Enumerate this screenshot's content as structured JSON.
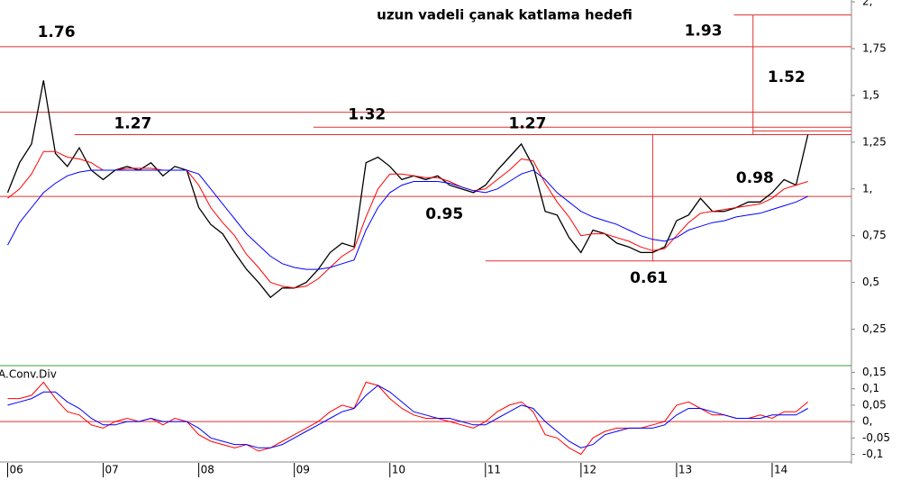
{
  "chart_data": [
    {
      "type": "line",
      "title": "uzun vadeli çanak katlama hedefi",
      "x": [
        6,
        6.125,
        6.25,
        6.375,
        6.5,
        6.625,
        6.75,
        6.875,
        7,
        7.125,
        7.25,
        7.375,
        7.5,
        7.625,
        7.75,
        7.875,
        8,
        8.125,
        8.25,
        8.375,
        8.5,
        8.625,
        8.75,
        8.875,
        9,
        9.125,
        9.25,
        9.375,
        9.5,
        9.625,
        9.75,
        9.875,
        10,
        10.125,
        10.25,
        10.375,
        10.5,
        10.625,
        10.75,
        10.875,
        11,
        11.125,
        11.25,
        11.375,
        11.5,
        11.625,
        11.75,
        11.875,
        12,
        12.125,
        12.25,
        12.375,
        12.5,
        12.625,
        12.75,
        12.875,
        13,
        13.125,
        13.25,
        13.375,
        13.5,
        13.625,
        13.75,
        13.875,
        14,
        14.125,
        14.25,
        14.375
      ],
      "series": [
        {
          "color": "#000000",
          "values": [
            0.98,
            1.14,
            1.24,
            1.58,
            1.19,
            1.12,
            1.22,
            1.1,
            1.05,
            1.1,
            1.12,
            1.1,
            1.14,
            1.07,
            1.12,
            1.1,
            0.9,
            0.81,
            0.76,
            0.66,
            0.57,
            0.5,
            0.42,
            0.47,
            0.47,
            0.5,
            0.57,
            0.66,
            0.71,
            0.69,
            1.14,
            1.17,
            1.12,
            1.05,
            1.07,
            1.05,
            1.07,
            1.02,
            1.0,
            0.98,
            1.02,
            1.1,
            1.17,
            1.24,
            1.12,
            0.88,
            0.86,
            0.74,
            0.66,
            0.78,
            0.76,
            0.71,
            0.69,
            0.66,
            0.66,
            0.69,
            0.83,
            0.86,
            0.95,
            0.88,
            0.88,
            0.9,
            0.93,
            0.93,
            0.98,
            1.05,
            1.02,
            1.29
          ]
        },
        {
          "color": "#ff0000",
          "values": [
            0.95,
            1.0,
            1.08,
            1.2,
            1.2,
            1.17,
            1.16,
            1.14,
            1.1,
            1.1,
            1.11,
            1.11,
            1.11,
            1.1,
            1.1,
            1.1,
            1.02,
            0.9,
            0.82,
            0.75,
            0.65,
            0.58,
            0.5,
            0.48,
            0.47,
            0.48,
            0.52,
            0.58,
            0.64,
            0.68,
            0.85,
            1.0,
            1.08,
            1.08,
            1.07,
            1.06,
            1.06,
            1.04,
            1.01,
            0.99,
            1.0,
            1.05,
            1.1,
            1.16,
            1.15,
            1.03,
            0.93,
            0.85,
            0.75,
            0.76,
            0.76,
            0.74,
            0.72,
            0.69,
            0.67,
            0.68,
            0.75,
            0.82,
            0.87,
            0.88,
            0.89,
            0.9,
            0.91,
            0.92,
            0.95,
            1.0,
            1.02,
            1.04
          ]
        },
        {
          "color": "#0000ff",
          "values": [
            0.7,
            0.82,
            0.9,
            0.98,
            1.03,
            1.07,
            1.09,
            1.1,
            1.1,
            1.1,
            1.1,
            1.1,
            1.1,
            1.1,
            1.1,
            1.1,
            1.08,
            1.0,
            0.92,
            0.84,
            0.76,
            0.7,
            0.64,
            0.6,
            0.58,
            0.57,
            0.57,
            0.58,
            0.6,
            0.62,
            0.78,
            0.9,
            0.98,
            1.02,
            1.04,
            1.04,
            1.04,
            1.03,
            1.01,
            0.99,
            0.98,
            1.0,
            1.04,
            1.08,
            1.1,
            1.05,
            0.98,
            0.93,
            0.88,
            0.85,
            0.83,
            0.81,
            0.78,
            0.75,
            0.73,
            0.72,
            0.74,
            0.78,
            0.8,
            0.82,
            0.83,
            0.85,
            0.86,
            0.87,
            0.89,
            0.91,
            0.93,
            0.96
          ]
        }
      ],
      "xlim": [
        5.92,
        14.83
      ],
      "ylim": [
        0.06,
        2.01
      ],
      "yticks": [
        {
          "value": 0.25,
          "label": "0,25"
        },
        {
          "value": 0.5,
          "label": "0,5"
        },
        {
          "value": 0.75,
          "label": "0,75"
        },
        {
          "value": 1,
          "label": "1,"
        },
        {
          "value": 1.25,
          "label": "1,25"
        },
        {
          "value": 1.5,
          "label": "1,5"
        },
        {
          "value": 1.75,
          "label": "1,75"
        },
        {
          "value": 2,
          "label": "2,"
        }
      ],
      "levels": [
        {
          "value": 1.93,
          "from": 13.6
        },
        {
          "value": 1.76,
          "from": 5.92
        },
        {
          "value": 1.41,
          "from": 5.92
        },
        {
          "value": 1.33,
          "from": 9.2
        },
        {
          "value": 1.31,
          "from": 13.8
        },
        {
          "value": 1.29,
          "from": 6.7
        },
        {
          "value": 0.96,
          "from": 5.92
        },
        {
          "value": 0.615,
          "from": 11.0
        }
      ],
      "verticals": [
        {
          "x": 12.75,
          "ylim": [
            0.615,
            1.29
          ]
        },
        {
          "x": 13.8,
          "ylim": [
            1.29,
            1.93
          ]
        }
      ],
      "annotations": [
        {
          "text": "1.76",
          "value": 1.76,
          "x": 6.51,
          "position": "above"
        },
        {
          "text": "1.27",
          "value": 1.27,
          "x": 7.31,
          "position": "above"
        },
        {
          "text": "1.32",
          "value": 1.32,
          "x": 9.76,
          "position": "above"
        },
        {
          "text": "1.27",
          "value": 1.27,
          "x": 11.44,
          "position": "above"
        },
        {
          "text": "0.95",
          "value": 0.95,
          "x": 10.57,
          "position": "below"
        },
        {
          "text": "0.61",
          "value": 0.61,
          "x": 12.71,
          "position": "below"
        },
        {
          "text": "0.98",
          "value": 0.98,
          "x": 13.82,
          "position": "above"
        },
        {
          "text": "1.52",
          "value": 1.52,
          "x": 14.15,
          "position": "above"
        },
        {
          "text": "1.93",
          "value": 1.93,
          "x": 13.28,
          "position": "below"
        }
      ]
    },
    {
      "type": "line",
      "title": "A.Conv.Div",
      "x": [
        6,
        6.125,
        6.25,
        6.375,
        6.5,
        6.625,
        6.75,
        6.875,
        7,
        7.125,
        7.25,
        7.375,
        7.5,
        7.625,
        7.75,
        7.875,
        8,
        8.125,
        8.25,
        8.375,
        8.5,
        8.625,
        8.75,
        8.875,
        9,
        9.125,
        9.25,
        9.375,
        9.5,
        9.625,
        9.75,
        9.875,
        10,
        10.125,
        10.25,
        10.375,
        10.5,
        10.625,
        10.75,
        10.875,
        11,
        11.125,
        11.25,
        11.375,
        11.5,
        11.625,
        11.75,
        11.875,
        12,
        12.125,
        12.25,
        12.375,
        12.5,
        12.625,
        12.75,
        12.875,
        13,
        13.125,
        13.25,
        13.375,
        13.5,
        13.625,
        13.75,
        13.875,
        14,
        14.125,
        14.25,
        14.375
      ],
      "series": [
        {
          "color": "#ff0000",
          "values": [
            0.07,
            0.07,
            0.08,
            0.12,
            0.07,
            0.03,
            0.02,
            -0.01,
            -0.02,
            0,
            0.01,
            0,
            0.01,
            -0.01,
            0.01,
            0,
            -0.04,
            -0.06,
            -0.07,
            -0.08,
            -0.07,
            -0.09,
            -0.08,
            -0.06,
            -0.04,
            -0.02,
            0,
            0.03,
            0.05,
            0.04,
            0.12,
            0.11,
            0.07,
            0.04,
            0.02,
            0.01,
            0.01,
            0,
            -0.01,
            -0.02,
            0,
            0.03,
            0.05,
            0.06,
            0.03,
            -0.04,
            -0.05,
            -0.08,
            -0.1,
            -0.05,
            -0.03,
            -0.02,
            -0.02,
            -0.02,
            -0.01,
            0,
            0.05,
            0.06,
            0.04,
            0.02,
            0.02,
            0.01,
            0.01,
            0.02,
            0.01,
            0.03,
            0.03,
            0.06
          ]
        },
        {
          "color": "#0000ff",
          "values": [
            0.05,
            0.06,
            0.07,
            0.09,
            0.09,
            0.06,
            0.04,
            0.01,
            -0.01,
            -0.01,
            0,
            0,
            0.01,
            0,
            0,
            0,
            -0.02,
            -0.05,
            -0.06,
            -0.07,
            -0.07,
            -0.08,
            -0.08,
            -0.07,
            -0.05,
            -0.03,
            -0.01,
            0.01,
            0.03,
            0.04,
            0.08,
            0.11,
            0.09,
            0.06,
            0.03,
            0.02,
            0.01,
            0.01,
            0,
            -0.01,
            -0.01,
            0.01,
            0.03,
            0.05,
            0.04,
            0,
            -0.03,
            -0.06,
            -0.08,
            -0.07,
            -0.04,
            -0.03,
            -0.02,
            -0.02,
            -0.02,
            -0.01,
            0.02,
            0.04,
            0.04,
            0.03,
            0.02,
            0.01,
            0.01,
            0.01,
            0.02,
            0.02,
            0.02,
            0.04
          ]
        }
      ],
      "xlim": [
        5.92,
        14.83
      ],
      "ylim": [
        -0.115,
        0.165
      ],
      "yticks": [
        {
          "value": -0.1,
          "label": "-0,1"
        },
        {
          "value": -0.05,
          "label": "-0,05"
        },
        {
          "value": 0,
          "label": "0,"
        },
        {
          "value": 0.05,
          "label": "0,05"
        },
        {
          "value": 0.1,
          "label": "0,1"
        },
        {
          "value": 0.15,
          "label": "0,15"
        }
      ],
      "xticks": [
        {
          "value": 6,
          "label": "06"
        },
        {
          "value": 7,
          "label": "07"
        },
        {
          "value": 8,
          "label": "08"
        },
        {
          "value": 9,
          "label": "09"
        },
        {
          "value": 10,
          "label": "10"
        },
        {
          "value": 11,
          "label": "11"
        },
        {
          "value": 12,
          "label": "12"
        },
        {
          "value": 13,
          "label": "13"
        },
        {
          "value": 14,
          "label": "14"
        }
      ],
      "levels": [
        {
          "value": 0,
          "from": 5.92
        }
      ]
    }
  ]
}
